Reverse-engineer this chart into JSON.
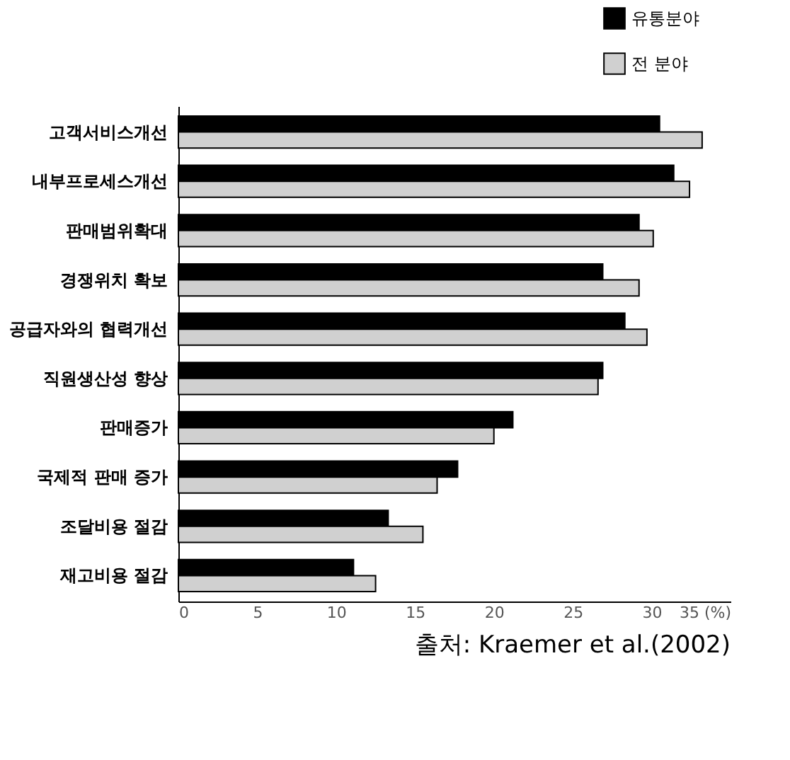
{
  "chart_data": {
    "type": "bar",
    "orientation": "horizontal",
    "categories": [
      "고객서비스개선",
      "내부프로세스개선",
      "판매범위확대",
      "경쟁위치 확보",
      "공급자와의 협력개선",
      "직원생산성 향상",
      "판매증가",
      "국제적 판매 증가",
      "조달비용 절감",
      "재고비용 절감"
    ],
    "series": [
      {
        "name": "유통분야",
        "color": "#000000",
        "values": [
          30.5,
          31.4,
          29.2,
          26.9,
          28.3,
          26.9,
          21.2,
          17.7,
          13.3,
          11.1
        ]
      },
      {
        "name": "전 분야",
        "color": "#d0d0d0",
        "values": [
          33.2,
          32.4,
          30.1,
          29.2,
          29.7,
          26.6,
          20.0,
          16.4,
          15.5,
          12.5
        ]
      }
    ],
    "xlim": [
      0,
      35
    ],
    "xticks": [
      0,
      5,
      10,
      15,
      20,
      25,
      30,
      {
        "value": 35,
        "label": "35 (%)"
      }
    ],
    "grid": false,
    "legend": "top right",
    "annotations": [
      "출처: Kraemer et al.(2002)"
    ]
  }
}
